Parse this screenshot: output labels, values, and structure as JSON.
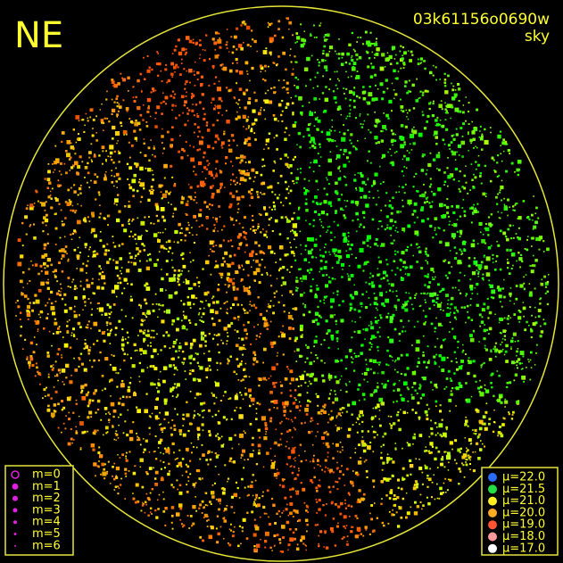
{
  "direction_label": "NE",
  "image_id": "03k61156o0690w",
  "mode": "sky",
  "magnitude_legend": [
    "m=0",
    "m=1",
    "m=2",
    "m=3",
    "m=4",
    "m=5",
    "m=6"
  ],
  "brightness_legend": [
    "μ=22.0",
    "μ=21.5",
    "μ=21.0",
    "μ=20.0",
    "μ=19.0",
    "μ=18.0",
    "μ=17.0"
  ]
}
